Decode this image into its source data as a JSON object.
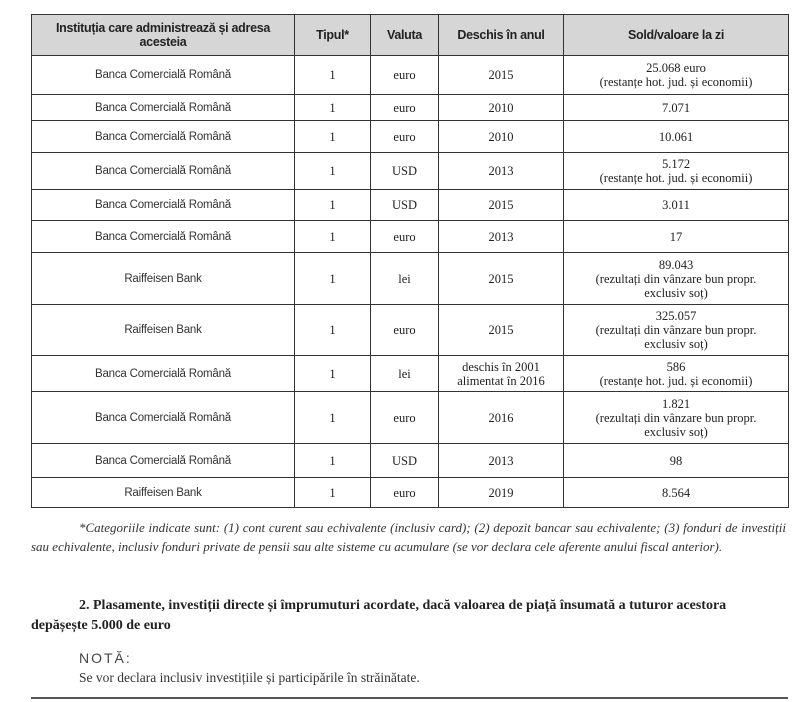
{
  "table": {
    "headers": [
      "Instituția care administrează și adresa acesteia",
      "Tipul*",
      "Valuta",
      "Deschis în anul",
      "Sold/valoare la zi"
    ],
    "rows": [
      {
        "institution": "Banca Comercială Română",
        "type": "1",
        "currency": "euro",
        "opened": [
          "2015"
        ],
        "balance": [
          "25.068 euro",
          "(restanțe hot. jud. și economii)"
        ]
      },
      {
        "institution": "Banca Comercială Română",
        "type": "1",
        "currency": "euro",
        "opened": [
          "2010"
        ],
        "balance": [
          "7.071"
        ]
      },
      {
        "institution": "Banca Comercială Română",
        "type": "1",
        "currency": "euro",
        "opened": [
          "2010"
        ],
        "balance": [
          "10.061"
        ]
      },
      {
        "institution": "Banca Comercială Română",
        "type": "1",
        "currency": "USD",
        "opened": [
          "2013"
        ],
        "balance": [
          "5.172",
          "(restanțe hot. jud. și economii)"
        ]
      },
      {
        "institution": "Banca Comercială Română",
        "type": "1",
        "currency": "USD",
        "opened": [
          "2015"
        ],
        "balance": [
          "3.011"
        ]
      },
      {
        "institution": "Banca Comercială Română",
        "type": "1",
        "currency": "euro",
        "opened": [
          "2013"
        ],
        "balance": [
          "17"
        ]
      },
      {
        "institution": "Raiffeisen Bank",
        "type": "1",
        "currency": "lei",
        "opened": [
          "2015"
        ],
        "balance": [
          "89.043",
          "(rezultați din vânzare bun propr.",
          "exclusiv soț)"
        ]
      },
      {
        "institution": "Raiffeisen Bank",
        "type": "1",
        "currency": "euro",
        "opened": [
          "2015"
        ],
        "balance": [
          "325.057",
          "(rezultați din vânzare bun propr.",
          "exclusiv soț)"
        ]
      },
      {
        "institution": "Banca Comercială Română",
        "type": "1",
        "currency": "lei",
        "opened": [
          "deschis în 2001",
          "alimentat în 2016"
        ],
        "balance": [
          "586",
          "(restanțe hot. jud. și economii)"
        ]
      },
      {
        "institution": "Banca Comercială Română",
        "type": "1",
        "currency": "euro",
        "opened": [
          "2016"
        ],
        "balance": [
          "1.821",
          "(rezultați din vânzare bun propr.",
          "exclusiv soț)"
        ]
      },
      {
        "institution": "Banca Comercială Română",
        "type": "1",
        "currency": "USD",
        "opened": [
          "2013"
        ],
        "balance": [
          "98"
        ]
      },
      {
        "institution": "Raiffeisen Bank",
        "type": "1",
        "currency": "euro",
        "opened": [
          "2019"
        ],
        "balance": [
          "8.564"
        ]
      }
    ]
  },
  "footnote": "*Categoriile indicate sunt: (1) cont curent sau echivalente (inclusiv card); (2) depozit bancar sau echivalente; (3) fonduri de investiții sau echivalente, inclusiv fonduri private de pensii sau alte sisteme cu acumulare (se vor declara cele aferente anului fiscal anterior).",
  "section2": "2. Plasamente, investiții directe și împrumuturi acordate, dacă valoarea de piață însumată a tuturor acestora depășește 5.000 de euro",
  "nota_label": "NOTĂ:",
  "nota_text": "Se vor declara inclusiv investițiile și participările în străinătate."
}
